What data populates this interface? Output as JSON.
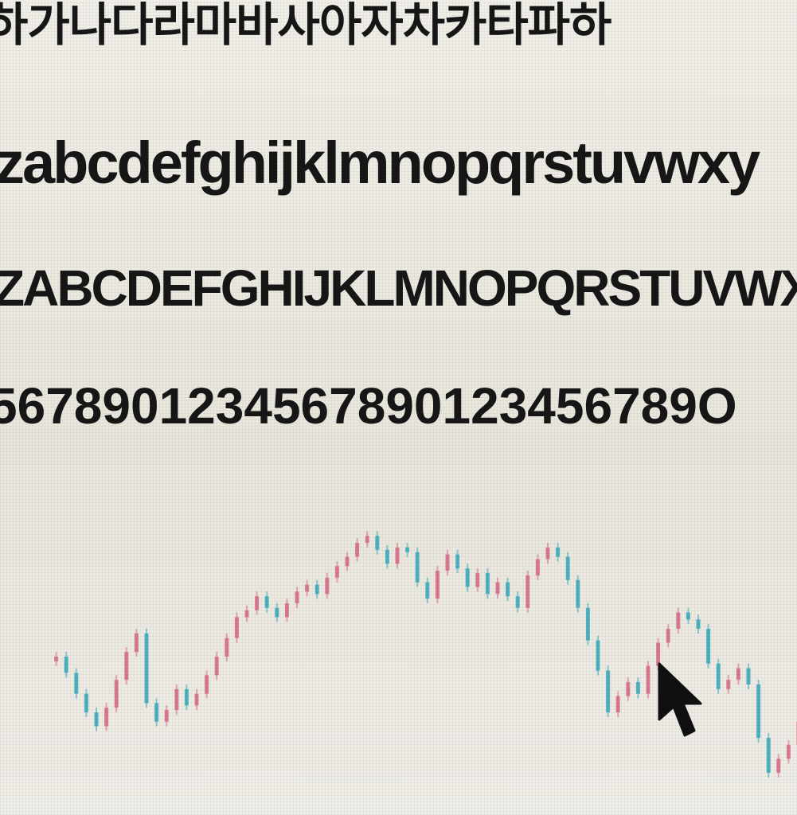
{
  "text_lines": {
    "hangul": "하가나다라마바사아자차카타파하",
    "lowercase": "zabcdefghijklmnopqrstuvwxy",
    "uppercase": "ZABCDEFGHIJKLMNOPQRSTUVWXY",
    "digits": "5678901234567890123456789O"
  },
  "chart": {
    "title": "",
    "up_color": "#d46a85",
    "down_color": "#3aa7b8",
    "closes": [
      118,
      120,
      113,
      104,
      96,
      90,
      98,
      110,
      122,
      130,
      100,
      92,
      97,
      106,
      99,
      104,
      112,
      120,
      128,
      137,
      140,
      146,
      141,
      137,
      143,
      148,
      151,
      147,
      154,
      159,
      163,
      169,
      172,
      166,
      160,
      167,
      165,
      152,
      145,
      157,
      164,
      158,
      150,
      156,
      147,
      152,
      146,
      141,
      155,
      162,
      167,
      163,
      153,
      141,
      127,
      114,
      96,
      103,
      109,
      104,
      116,
      126,
      132,
      139,
      136,
      132,
      117,
      106,
      110,
      115,
      108,
      85,
      70,
      76,
      82,
      92,
      80
    ]
  },
  "cursor": {
    "icon": "arrow-cursor-icon",
    "color": "#101010"
  }
}
